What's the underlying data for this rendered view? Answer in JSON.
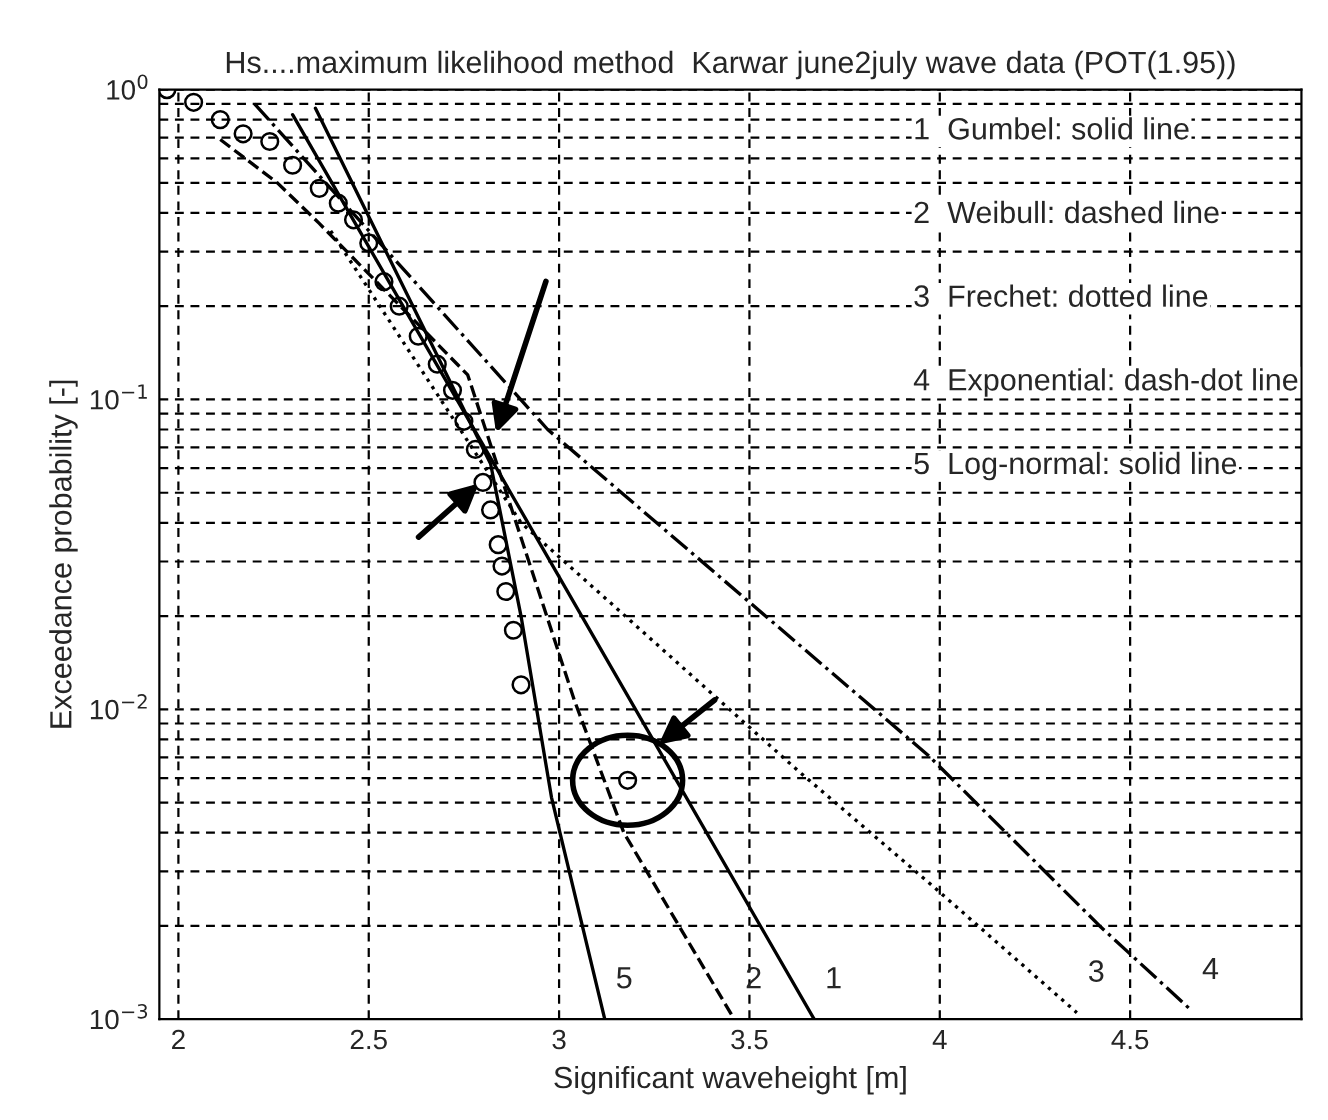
{
  "chart_data": {
    "type": "line",
    "title": "Hs....maximum likelihood method  Karwar june2july wave data (POT(1.95))",
    "xlabel": "Significant waveheight [m]",
    "ylabel": "Exceedance probability [-]",
    "log": "y",
    "grid": true,
    "xlim": [
      1.95,
      4.95
    ],
    "xticks": [
      2,
      2.5,
      3,
      3.5,
      4,
      4.5
    ],
    "ylim": [
      0.001,
      1
    ],
    "yticks": [
      {
        "value": 0.001,
        "label": "10$^{−3}$"
      },
      {
        "value": 0.01,
        "label": "10$^{−2}$"
      },
      {
        "value": 0.1,
        "label": "10$^{−1}$"
      },
      {
        "value": 1,
        "label": "10$^{0}$"
      }
    ],
    "series": [
      {
        "type": "scatter",
        "marker": "circle",
        "color": "#000000",
        "x": [
          1.97,
          2.04,
          2.11,
          2.17,
          2.24,
          2.3,
          2.37,
          2.42,
          2.46,
          2.5,
          2.54,
          2.58,
          2.63,
          2.68,
          2.72,
          2.75,
          2.78,
          2.8,
          2.82,
          2.84,
          2.85,
          2.86,
          2.88,
          2.9,
          3.18
        ],
        "values": [
          1.0,
          0.91,
          0.8,
          0.72,
          0.68,
          0.57,
          0.48,
          0.43,
          0.38,
          0.32,
          0.24,
          0.2,
          0.16,
          0.13,
          0.107,
          0.085,
          0.069,
          0.054,
          0.044,
          0.034,
          0.029,
          0.024,
          0.018,
          0.012,
          0.0059
        ]
      },
      {
        "name": "1",
        "line_style": "solid",
        "color": "#000000",
        "x": [
          2.3,
          3.67
        ],
        "values": [
          0.83,
          0.001
        ]
      },
      {
        "name": "2",
        "line_style": "dashed",
        "color": "#000000",
        "x": [
          2.11,
          2.26,
          2.37,
          2.76,
          3.04,
          3.17,
          3.46
        ],
        "values": [
          0.69,
          0.5,
          0.37,
          0.12,
          0.0107,
          0.004,
          0.001
        ]
      },
      {
        "name": "3",
        "line_style": "dotted",
        "color": "#000000",
        "x": [
          2.4,
          2.9,
          3.63,
          3.98,
          4.36
        ],
        "values": [
          0.35,
          0.04,
          0.0063,
          0.0027,
          0.00105
        ]
      },
      {
        "name": "4",
        "line_style": "dashdot",
        "color": "#000000",
        "x": [
          2.2,
          2.97,
          3.97,
          4.42,
          4.66
        ],
        "values": [
          0.9,
          0.08,
          0.0071,
          0.002,
          0.00107
        ]
      },
      {
        "name": "5",
        "line_style": "solid",
        "color": "#000000",
        "x": [
          2.36,
          2.82,
          2.9,
          2.98,
          3.12
        ],
        "values": [
          0.87,
          0.062,
          0.02,
          0.0052,
          0.001
        ]
      }
    ],
    "annotations": [
      "1  Gumbel: solid line",
      "2  Weibull: dashed line",
      "3  Frechet: dotted line",
      "4  Exponential: dash-dot line",
      "5  Log-normal: solid line"
    ]
  }
}
